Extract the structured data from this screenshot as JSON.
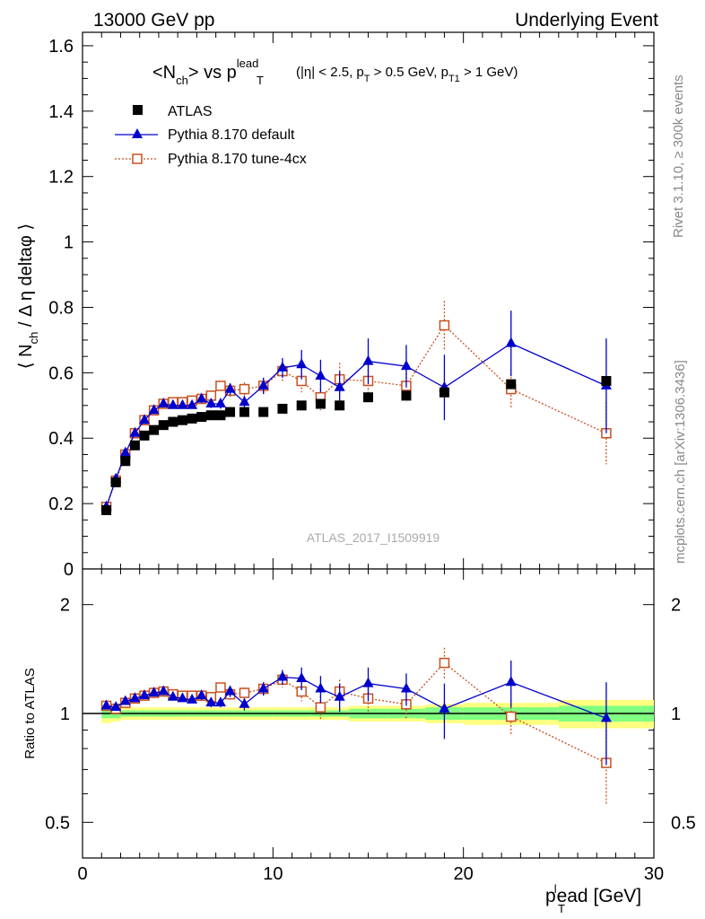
{
  "header": {
    "left": "13000 GeV pp",
    "right": "Underlying Event"
  },
  "side_labels": {
    "rivet": "Rivet 3.1.10, ≥ 300k events",
    "mcplots": "mcplots.cern.ch [arXiv:1306.3436]"
  },
  "watermark": "ATLAS_2017_I1509919",
  "colors": {
    "atlas": "#000000",
    "pythia_default": "#0000cc",
    "pythia_tune": "#c8501e",
    "band_outer": "#ffff80",
    "band_inner": "#80ff80"
  },
  "chart_data": [
    {
      "type": "scatter",
      "title": "<N_ch> vs p_T^lead (|η| < 2.5, p_T > 0.5 GeV, p_T1 > 1 GeV)",
      "title_parts": {
        "main_a": "<N",
        "main_sub": "ch",
        "main_b": "> vs p",
        "main_sup": "lead",
        "main_sub2": "T",
        "cuts_a": "(|η| < 2.5, p",
        "cuts_sub1": "T",
        "cuts_b": " > 0.5 GeV, p",
        "cuts_sub2": "T1",
        "cuts_c": " > 1 GeV)"
      },
      "ylabel": "⟨ N_ch / Δη deltaφ ⟩",
      "ylabel_parts": {
        "a": "⟨ N",
        "sub": "ch",
        "b": " / Δ η deltaφ ⟩"
      },
      "xlim": [
        0,
        30
      ],
      "ylim": [
        0,
        1.65
      ],
      "yticks": [
        "0",
        "0.2",
        "0.4",
        "0.6",
        "0.8",
        "1",
        "1.2",
        "1.4",
        "1.6"
      ],
      "legend_position": "top-left",
      "series": [
        {
          "name": "ATLAS",
          "marker": "filled-square",
          "x": [
            1.25,
            1.75,
            2.25,
            2.75,
            3.25,
            3.75,
            4.25,
            4.75,
            5.25,
            5.75,
            6.25,
            6.75,
            7.25,
            7.75,
            8.5,
            9.5,
            10.5,
            11.5,
            12.5,
            13.5,
            15,
            17,
            19,
            22.5,
            27.5
          ],
          "y": [
            0.18,
            0.265,
            0.33,
            0.378,
            0.408,
            0.425,
            0.44,
            0.45,
            0.455,
            0.46,
            0.465,
            0.47,
            0.47,
            0.48,
            0.48,
            0.48,
            0.49,
            0.5,
            0.505,
            0.5,
            0.525,
            0.53,
            0.54,
            0.565,
            0.575
          ]
        },
        {
          "name": "Pythia 8.170 default",
          "marker": "filled-triangle",
          "x": [
            1.25,
            1.75,
            2.25,
            2.75,
            3.25,
            3.75,
            4.25,
            4.75,
            5.25,
            5.75,
            6.25,
            6.75,
            7.25,
            7.75,
            8.5,
            9.5,
            10.5,
            11.5,
            12.5,
            13.5,
            15,
            17,
            19,
            22.5,
            27.5
          ],
          "y": [
            0.19,
            0.275,
            0.355,
            0.415,
            0.455,
            0.485,
            0.505,
            0.5,
            0.5,
            0.5,
            0.52,
            0.505,
            0.505,
            0.55,
            0.51,
            0.56,
            0.615,
            0.625,
            0.59,
            0.555,
            0.635,
            0.62,
            0.555,
            0.69,
            0.56
          ],
          "err": [
            0.005,
            0.005,
            0.006,
            0.007,
            0.008,
            0.008,
            0.008,
            0.009,
            0.01,
            0.01,
            0.012,
            0.013,
            0.015,
            0.018,
            0.02,
            0.025,
            0.03,
            0.045,
            0.05,
            0.05,
            0.07,
            0.065,
            0.1,
            0.1,
            0.145
          ]
        },
        {
          "name": "Pythia 8.170 tune-4cx",
          "marker": "open-square",
          "x": [
            1.25,
            1.75,
            2.25,
            2.75,
            3.25,
            3.75,
            4.25,
            4.75,
            5.25,
            5.75,
            6.25,
            6.75,
            7.25,
            7.75,
            8.5,
            9.5,
            10.5,
            11.5,
            12.5,
            13.5,
            15,
            17,
            19,
            22.5,
            27.5
          ],
          "y": [
            0.19,
            0.27,
            0.35,
            0.415,
            0.455,
            0.485,
            0.505,
            0.51,
            0.51,
            0.515,
            0.52,
            0.53,
            0.56,
            0.545,
            0.55,
            0.56,
            0.605,
            0.575,
            0.525,
            0.58,
            0.575,
            0.56,
            0.745,
            0.55,
            0.415
          ],
          "err": [
            0.005,
            0.005,
            0.006,
            0.007,
            0.008,
            0.008,
            0.008,
            0.009,
            0.01,
            0.01,
            0.012,
            0.013,
            0.015,
            0.018,
            0.02,
            0.025,
            0.03,
            0.035,
            0.04,
            0.05,
            0.055,
            0.05,
            0.075,
            0.06,
            0.095
          ]
        }
      ]
    },
    {
      "type": "scatter",
      "ylabel": "Ratio to ATLAS",
      "xlabel": "p_T^lead [GeV]",
      "xlabel_parts": {
        "a": "p",
        "sub": "T",
        "sup": "l",
        "b": "ead [GeV]"
      },
      "xlim": [
        0,
        30
      ],
      "xticks": [
        "0",
        "10",
        "20",
        "30"
      ],
      "ylim": [
        0.4,
        2.4
      ],
      "yscale": "log",
      "yticks": [
        "0.5",
        "1",
        "2"
      ],
      "reference_band": {
        "edges": [
          1,
          1.5,
          2,
          2.5,
          3,
          3.5,
          4,
          4.5,
          5,
          5.5,
          6,
          6.5,
          7,
          7.5,
          8,
          9,
          10,
          11,
          12,
          13,
          14,
          16,
          18,
          20,
          25,
          30
        ],
        "inner": [
          0.03,
          0.03,
          0.02,
          0.02,
          0.02,
          0.02,
          0.02,
          0.02,
          0.02,
          0.02,
          0.02,
          0.02,
          0.02,
          0.02,
          0.02,
          0.02,
          0.02,
          0.02,
          0.02,
          0.02,
          0.03,
          0.03,
          0.04,
          0.04,
          0.05
        ],
        "outer": [
          0.06,
          0.05,
          0.04,
          0.04,
          0.04,
          0.04,
          0.04,
          0.04,
          0.04,
          0.04,
          0.04,
          0.04,
          0.04,
          0.04,
          0.04,
          0.04,
          0.04,
          0.04,
          0.04,
          0.04,
          0.05,
          0.05,
          0.06,
          0.07,
          0.09
        ]
      },
      "series": [
        {
          "name": "Pythia 8.170 default",
          "x": [
            1.25,
            1.75,
            2.25,
            2.75,
            3.25,
            3.75,
            4.25,
            4.75,
            5.25,
            5.75,
            6.25,
            6.75,
            7.25,
            7.75,
            8.5,
            9.5,
            10.5,
            11.5,
            12.5,
            13.5,
            15,
            17,
            19,
            22.5,
            27.5
          ],
          "y": [
            1.05,
            1.04,
            1.08,
            1.1,
            1.12,
            1.14,
            1.15,
            1.11,
            1.1,
            1.09,
            1.12,
            1.07,
            1.07,
            1.15,
            1.06,
            1.17,
            1.26,
            1.25,
            1.17,
            1.11,
            1.21,
            1.17,
            1.03,
            1.22,
            0.97
          ],
          "err": [
            0.02,
            0.02,
            0.02,
            0.02,
            0.02,
            0.02,
            0.02,
            0.02,
            0.02,
            0.02,
            0.03,
            0.03,
            0.03,
            0.04,
            0.04,
            0.05,
            0.06,
            0.09,
            0.1,
            0.1,
            0.13,
            0.12,
            0.18,
            0.18,
            0.25
          ]
        },
        {
          "name": "Pythia 8.170 tune-4cx",
          "x": [
            1.25,
            1.75,
            2.25,
            2.75,
            3.25,
            3.75,
            4.25,
            4.75,
            5.25,
            5.75,
            6.25,
            6.75,
            7.25,
            7.75,
            8.5,
            9.5,
            10.5,
            11.5,
            12.5,
            13.5,
            15,
            17,
            19,
            22.5,
            27.5
          ],
          "y": [
            1.05,
            1.03,
            1.07,
            1.1,
            1.12,
            1.14,
            1.15,
            1.13,
            1.12,
            1.12,
            1.12,
            1.11,
            1.18,
            1.13,
            1.14,
            1.17,
            1.24,
            1.15,
            1.04,
            1.15,
            1.1,
            1.06,
            1.38,
            0.98,
            0.73
          ],
          "err": [
            0.02,
            0.02,
            0.02,
            0.02,
            0.02,
            0.02,
            0.02,
            0.02,
            0.02,
            0.02,
            0.03,
            0.03,
            0.03,
            0.04,
            0.04,
            0.05,
            0.06,
            0.07,
            0.08,
            0.09,
            0.1,
            0.09,
            0.14,
            0.11,
            0.17
          ]
        }
      ]
    }
  ]
}
